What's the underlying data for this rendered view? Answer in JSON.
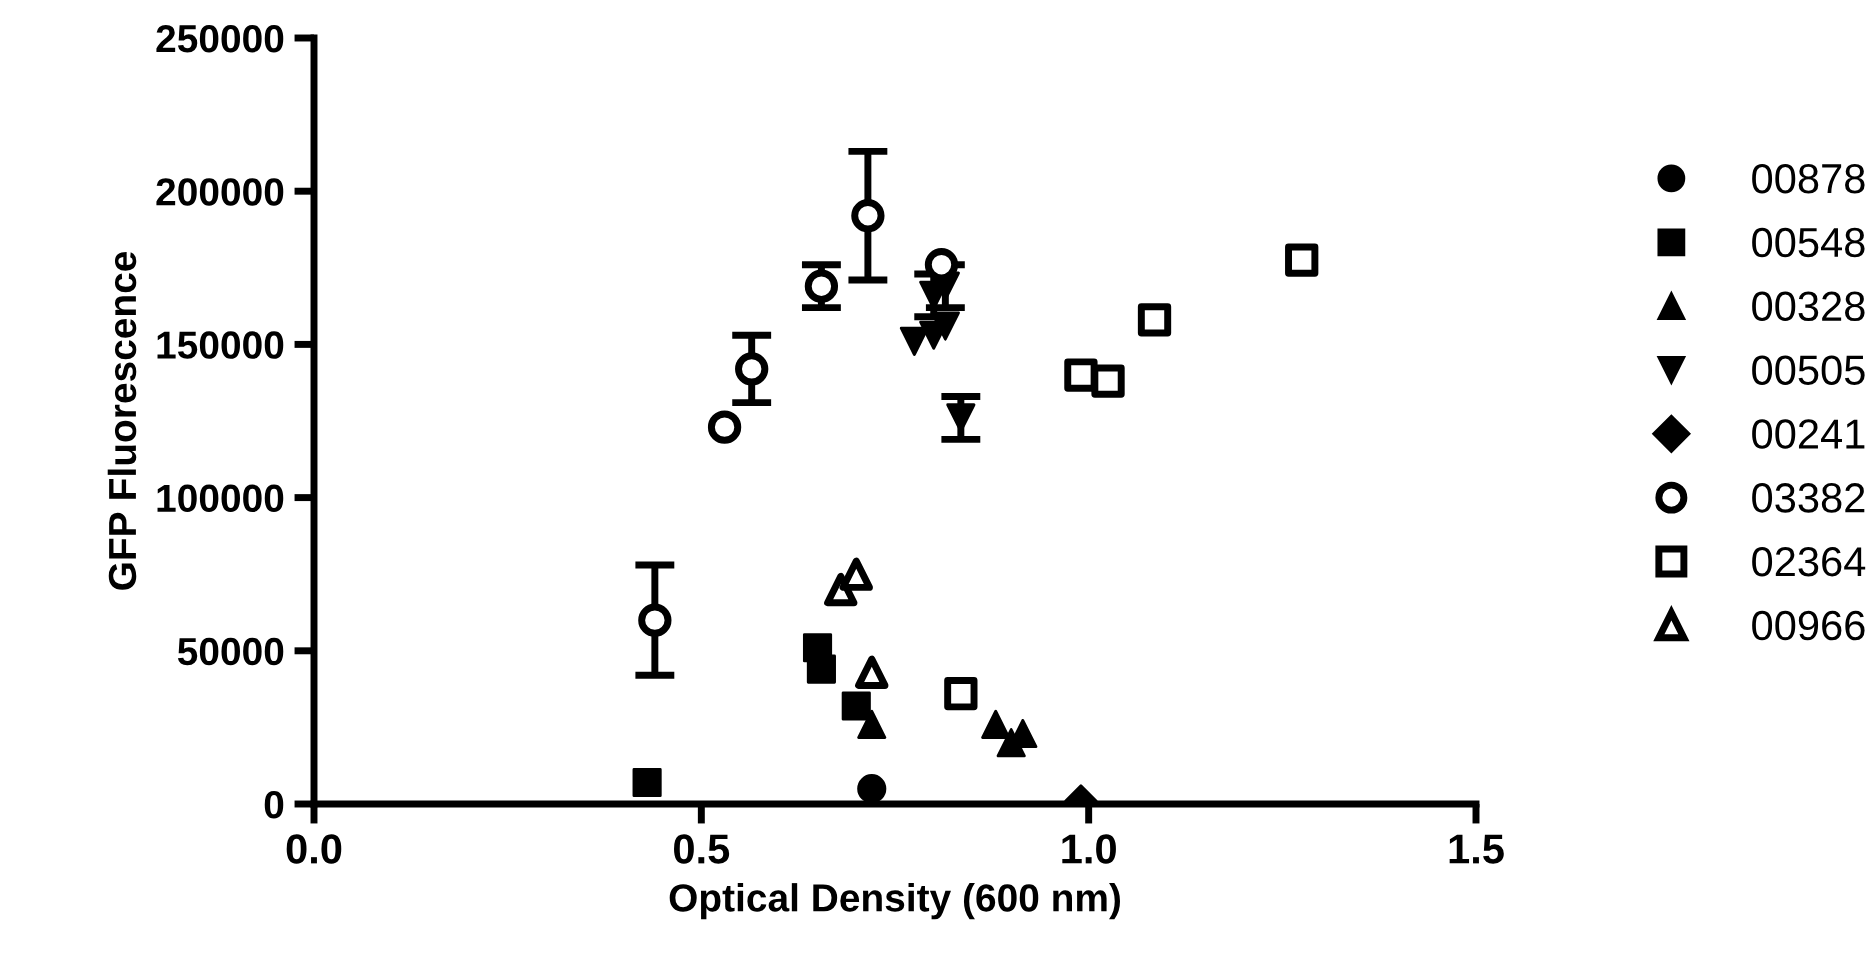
{
  "chart_data": {
    "type": "scatter",
    "xlabel": "Optical Density (600 nm)",
    "ylabel": "GFP Fluorescence",
    "xlim": [
      0,
      1.5
    ],
    "xticks": [
      {
        "value": 0,
        "label": "0.0"
      },
      {
        "value": 0.5,
        "label": "0.5"
      },
      {
        "value": 1,
        "label": "1.0"
      },
      {
        "value": 1.5,
        "label": "1.5"
      }
    ],
    "ylim": [
      0,
      250000
    ],
    "yticks": [
      0,
      50000,
      100000,
      150000,
      200000,
      250000
    ],
    "grid": false,
    "legend": "right",
    "series": [
      {
        "name": "00878",
        "color": "#000000",
        "marker": "circle",
        "x": [
          0.72
        ],
        "values": [
          5000
        ]
      },
      {
        "name": "00548",
        "color": "#000000",
        "marker": "square",
        "x": [
          0.43,
          0.65,
          0.655,
          0.7
        ],
        "values": [
          7000,
          51000,
          44000,
          32000
        ]
      },
      {
        "name": "00328",
        "color": "#000000",
        "marker": "triangle",
        "x": [
          0.72,
          0.88,
          0.9,
          0.915
        ],
        "values": [
          26000,
          26000,
          20000,
          23000
        ]
      },
      {
        "name": "00505",
        "color": "#000000",
        "marker": "triangle-down",
        "x": [
          0.775,
          0.8,
          0.815,
          0.8,
          0.815,
          0.835
        ],
        "values": [
          151000,
          153000,
          156000,
          166000,
          169000,
          126000
        ],
        "errors": [
          null,
          null,
          null,
          7000,
          7000,
          7000
        ]
      },
      {
        "name": "00241",
        "color": "#000000",
        "marker": "diamond",
        "x": [
          0.99
        ],
        "values": [
          1000
        ]
      },
      {
        "name": "03382",
        "color": "#000000",
        "marker": "circle-open",
        "x": [
          0.44,
          0.53,
          0.565,
          0.655,
          0.715,
          0.81
        ],
        "values": [
          60000,
          123000,
          142000,
          169000,
          192000,
          176000
        ],
        "errors": [
          18000,
          null,
          11000,
          7000,
          21000,
          null
        ]
      },
      {
        "name": "02364",
        "color": "#000000",
        "marker": "square-open",
        "x": [
          0.835,
          0.99,
          1.025,
          1.085,
          1.275
        ],
        "values": [
          36000,
          140000,
          138000,
          158000,
          177500
        ]
      },
      {
        "name": "00966",
        "color": "#000000",
        "marker": "triangle-open",
        "x": [
          0.68,
          0.7,
          0.72
        ],
        "values": [
          70000,
          75000,
          43000
        ]
      }
    ]
  }
}
